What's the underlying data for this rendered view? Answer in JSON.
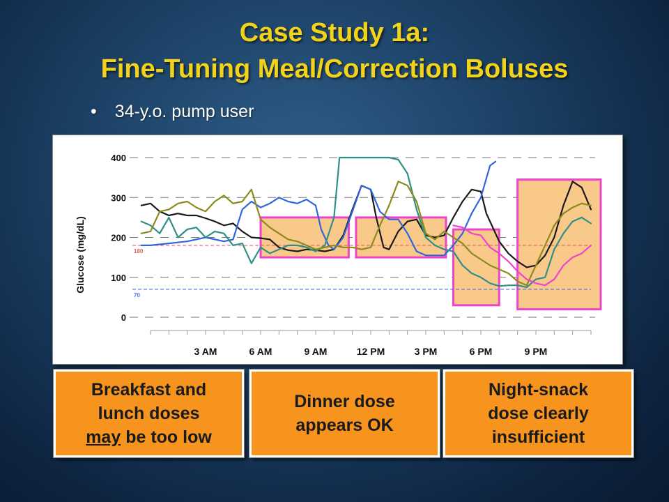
{
  "slide": {
    "title_line1": "Case Study 1a:",
    "title_line2": "Fine-Tuning Meal/Correction Boluses",
    "bullet": "34-y.o. pump user"
  },
  "callouts": {
    "left_line1": "Breakfast and",
    "left_line2": "lunch doses",
    "left_line3_em": "may",
    "left_line3_rest": " be too low",
    "middle_line1": "Dinner dose",
    "middle_line2": "appears OK",
    "right_line1": "Night-snack",
    "right_line2": "dose clearly",
    "right_line3": "insufficient"
  },
  "colors": {
    "title": "#f3d21a",
    "callout_fill": "#f7941d",
    "highlight_border": "#ee44cc",
    "highlight_fill": "#f9c98a",
    "target_high_line": "#e06060",
    "target_low_line": "#5070e0"
  },
  "chart_data": {
    "type": "line",
    "ylabel": "Glucose (mg/dL)",
    "ylim": [
      0,
      400
    ],
    "yticks": [
      0,
      100,
      200,
      300,
      400
    ],
    "xlim": [
      0,
      24
    ],
    "xticks": [
      {
        "hour": 3,
        "label": "3 AM"
      },
      {
        "hour": 6,
        "label": "6 AM"
      },
      {
        "hour": 9,
        "label": "9 AM"
      },
      {
        "hour": 12,
        "label": "12 PM"
      },
      {
        "hour": 15,
        "label": "3 PM"
      },
      {
        "hour": 18,
        "label": "6 PM"
      },
      {
        "hour": 21,
        "label": "9 PM"
      }
    ],
    "reference_lines": [
      {
        "value": 180,
        "label": "180",
        "color": "#e06060"
      },
      {
        "value": 70,
        "label": "70",
        "color": "#5070e0"
      }
    ],
    "highlight_regions": [
      {
        "x": [
          6.0,
          10.8
        ],
        "y": [
          150,
          250
        ]
      },
      {
        "x": [
          11.2,
          16.1
        ],
        "y": [
          150,
          250
        ]
      },
      {
        "x": [
          16.5,
          19.0
        ],
        "y": [
          30,
          220
        ]
      },
      {
        "x": [
          20.0,
          24.6
        ],
        "y": [
          20,
          345
        ]
      }
    ],
    "series": [
      {
        "color": "#1a1a1a",
        "points": [
          [
            -0.5,
            280
          ],
          [
            0,
            285
          ],
          [
            0.5,
            265
          ],
          [
            1,
            255
          ],
          [
            1.5,
            260
          ],
          [
            2,
            255
          ],
          [
            2.5,
            255
          ],
          [
            3,
            248
          ],
          [
            3.5,
            240
          ],
          [
            4,
            230
          ],
          [
            4.5,
            235
          ],
          [
            5,
            215
          ],
          [
            5.5,
            200
          ],
          [
            6,
            198
          ],
          [
            6.5,
            195
          ],
          [
            7,
            175
          ],
          [
            7.5,
            168
          ],
          [
            8,
            165
          ],
          [
            8.5,
            170
          ],
          [
            9,
            168
          ],
          [
            9.5,
            165
          ],
          [
            10,
            170
          ],
          [
            10.5,
            205
          ],
          [
            11,
            270
          ],
          [
            11.5,
            330
          ],
          [
            12,
            320
          ],
          [
            12.3,
            250
          ],
          [
            12.7,
            175
          ],
          [
            13,
            170
          ],
          [
            13.5,
            215
          ],
          [
            14,
            240
          ],
          [
            14.5,
            245
          ],
          [
            15,
            205
          ],
          [
            15.5,
            200
          ],
          [
            16,
            205
          ],
          [
            16.5,
            250
          ],
          [
            17,
            290
          ],
          [
            17.5,
            320
          ],
          [
            18,
            315
          ],
          [
            18.3,
            260
          ],
          [
            18.7,
            220
          ],
          [
            19,
            190
          ],
          [
            19.5,
            160
          ],
          [
            20,
            140
          ],
          [
            20.5,
            125
          ],
          [
            21,
            130
          ],
          [
            21.5,
            155
          ],
          [
            22,
            200
          ],
          [
            22.5,
            280
          ],
          [
            23,
            340
          ],
          [
            23.5,
            325
          ],
          [
            24,
            270
          ]
        ]
      },
      {
        "color": "#2f66dd",
        "points": [
          [
            -0.5,
            180
          ],
          [
            0,
            180
          ],
          [
            1,
            185
          ],
          [
            2,
            190
          ],
          [
            3,
            200
          ],
          [
            4,
            190
          ],
          [
            4.5,
            195
          ],
          [
            5,
            270
          ],
          [
            5.5,
            290
          ],
          [
            6,
            275
          ],
          [
            6.5,
            285
          ],
          [
            7,
            300
          ],
          [
            7.5,
            290
          ],
          [
            8,
            285
          ],
          [
            8.5,
            295
          ],
          [
            9,
            280
          ],
          [
            9.3,
            220
          ],
          [
            9.7,
            180
          ],
          [
            10,
            170
          ],
          [
            10.5,
            200
          ],
          [
            11,
            265
          ],
          [
            11.5,
            330
          ],
          [
            12,
            320
          ],
          [
            12.5,
            265
          ],
          [
            13,
            245
          ],
          [
            13.5,
            245
          ],
          [
            14,
            210
          ],
          [
            14.5,
            165
          ],
          [
            15,
            155
          ],
          [
            15.5,
            155
          ],
          [
            16,
            155
          ],
          [
            16.5,
            180
          ],
          [
            17,
            210
          ],
          [
            17.5,
            260
          ],
          [
            18,
            300
          ],
          [
            18.5,
            380
          ],
          [
            18.8,
            390
          ]
        ]
      },
      {
        "color": "#2f8f86",
        "points": [
          [
            -0.5,
            240
          ],
          [
            0,
            230
          ],
          [
            0.5,
            210
          ],
          [
            1,
            250
          ],
          [
            1.5,
            200
          ],
          [
            2,
            220
          ],
          [
            2.5,
            225
          ],
          [
            3,
            200
          ],
          [
            3.5,
            215
          ],
          [
            4,
            210
          ],
          [
            4.5,
            180
          ],
          [
            5,
            185
          ],
          [
            5.5,
            135
          ],
          [
            6,
            175
          ],
          [
            6.5,
            160
          ],
          [
            7,
            170
          ],
          [
            7.5,
            180
          ],
          [
            8,
            180
          ],
          [
            8.5,
            175
          ],
          [
            9,
            165
          ],
          [
            9.5,
            180
          ],
          [
            10,
            250
          ],
          [
            10.3,
            400
          ],
          [
            11,
            400
          ],
          [
            12,
            400
          ],
          [
            13,
            400
          ],
          [
            13.5,
            395
          ],
          [
            14,
            360
          ],
          [
            14.5,
            270
          ],
          [
            15,
            200
          ],
          [
            15.5,
            180
          ],
          [
            16,
            170
          ],
          [
            16.5,
            165
          ],
          [
            17,
            130
          ],
          [
            17.5,
            110
          ],
          [
            18,
            100
          ],
          [
            18.5,
            85
          ],
          [
            19,
            78
          ],
          [
            19.5,
            80
          ],
          [
            20,
            80
          ],
          [
            20.5,
            75
          ],
          [
            21,
            95
          ],
          [
            21.5,
            100
          ],
          [
            22,
            170
          ],
          [
            22.5,
            210
          ],
          [
            23,
            240
          ],
          [
            23.5,
            250
          ],
          [
            24,
            235
          ]
        ]
      },
      {
        "color": "#8b8a1e",
        "points": [
          [
            -0.5,
            210
          ],
          [
            0,
            215
          ],
          [
            0.5,
            265
          ],
          [
            1,
            270
          ],
          [
            1.5,
            285
          ],
          [
            2,
            290
          ],
          [
            2.5,
            275
          ],
          [
            3,
            265
          ],
          [
            3.5,
            290
          ],
          [
            4,
            305
          ],
          [
            4.5,
            285
          ],
          [
            5,
            290
          ],
          [
            5.5,
            320
          ],
          [
            6,
            245
          ],
          [
            6.5,
            225
          ],
          [
            7,
            210
          ],
          [
            7.5,
            195
          ],
          [
            8,
            190
          ],
          [
            8.5,
            180
          ],
          [
            9,
            170
          ],
          [
            9.5,
            175
          ],
          [
            10,
            180
          ],
          [
            10.5,
            175
          ],
          [
            11,
            175
          ],
          [
            11.5,
            170
          ],
          [
            12,
            175
          ],
          [
            12.5,
            230
          ],
          [
            13,
            280
          ],
          [
            13.5,
            340
          ],
          [
            14,
            330
          ],
          [
            14.5,
            290
          ],
          [
            15,
            210
          ],
          [
            15.5,
            195
          ],
          [
            16,
            215
          ],
          [
            16.5,
            200
          ],
          [
            17,
            185
          ],
          [
            17.5,
            160
          ],
          [
            18,
            145
          ],
          [
            18.5,
            130
          ],
          [
            19,
            120
          ],
          [
            19.5,
            110
          ],
          [
            20,
            90
          ],
          [
            20.5,
            80
          ],
          [
            21,
            130
          ],
          [
            21.5,
            180
          ],
          [
            22,
            230
          ],
          [
            22.5,
            260
          ],
          [
            23,
            275
          ],
          [
            23.5,
            285
          ],
          [
            24,
            280
          ]
        ]
      },
      {
        "color": "#ee44cc",
        "points": [
          [
            16.5,
            230
          ],
          [
            17,
            225
          ],
          [
            17.5,
            210
          ],
          [
            18,
            205
          ],
          [
            18.5,
            175
          ],
          [
            19,
            160
          ],
          [
            19.5,
            140
          ],
          [
            20,
            115
          ],
          [
            20.5,
            95
          ],
          [
            21,
            85
          ],
          [
            21.5,
            80
          ],
          [
            22,
            95
          ],
          [
            22.5,
            130
          ],
          [
            23,
            150
          ],
          [
            23.5,
            160
          ],
          [
            24,
            180
          ]
        ]
      }
    ]
  }
}
